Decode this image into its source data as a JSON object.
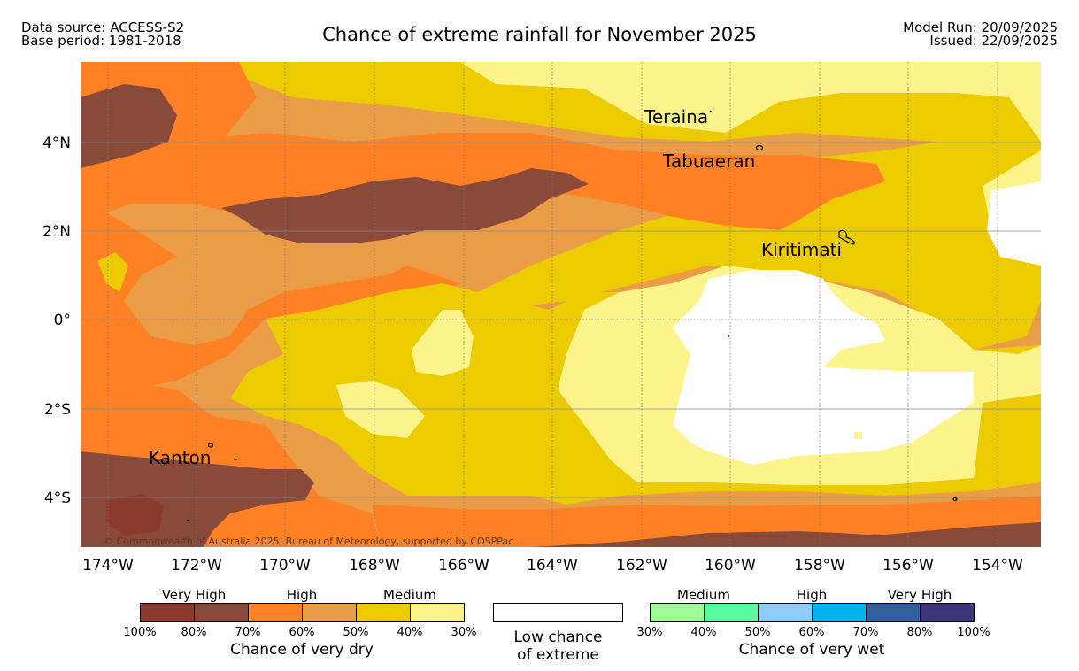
{
  "header": {
    "data_source": "Data source: ACCESS-S2",
    "base_period": "Base period: 1981-2018",
    "title": "Chance of extreme rainfall for November 2025",
    "model_run": "Model Run: 20/09/2025",
    "issued": "Issued: 22/09/2025"
  },
  "map": {
    "lon_labels": [
      "174°W",
      "172°W",
      "170°W",
      "168°W",
      "166°W",
      "164°W",
      "162°W",
      "160°W",
      "158°W",
      "156°W",
      "154°W"
    ],
    "lat_labels": [
      "4°N",
      "2°N",
      "0°",
      "2°S",
      "4°S"
    ],
    "places": {
      "teraina": "Teraina",
      "tabuaeran": "Tabuaeran",
      "kiritimati": "Kiritimati",
      "kanton": "Kanton"
    },
    "copyright": "© Commonwealth of Australia 2025, Bureau of Meteorology, supported by COSPPac"
  },
  "legend": {
    "dry": {
      "categories": [
        "Very High",
        "High",
        "Medium"
      ],
      "ticks": [
        "100%",
        "80%",
        "70%",
        "60%",
        "50%",
        "40%",
        "30%"
      ],
      "colors": [
        "#8b3a2e",
        "#8a4a3a",
        "#ff8124",
        "#ea9c46",
        "#eccb00",
        "#fcf48b"
      ],
      "title": "Chance of very dry"
    },
    "low": {
      "line1": "Low chance",
      "line2": "of extreme",
      "color": "#ffffff"
    },
    "wet": {
      "categories": [
        "Medium",
        "High",
        "Very High"
      ],
      "ticks": [
        "30%",
        "40%",
        "50%",
        "60%",
        "70%",
        "80%",
        "100%"
      ],
      "colors": [
        "#a0fa96",
        "#5afaa0",
        "#8ccdfa",
        "#00b4f0",
        "#345f9f",
        "#3c3878"
      ],
      "title": "Chance of very wet"
    }
  },
  "colors": {
    "very_high_dry": "#8b4b3c",
    "high_dry_60_70": "#ff8124",
    "high_dry_50_60": "#ea9c46",
    "medium_dry_40_50": "#eccb00",
    "medium_dry_30_40": "#fcf48b",
    "low_chance": "#ffffff"
  }
}
